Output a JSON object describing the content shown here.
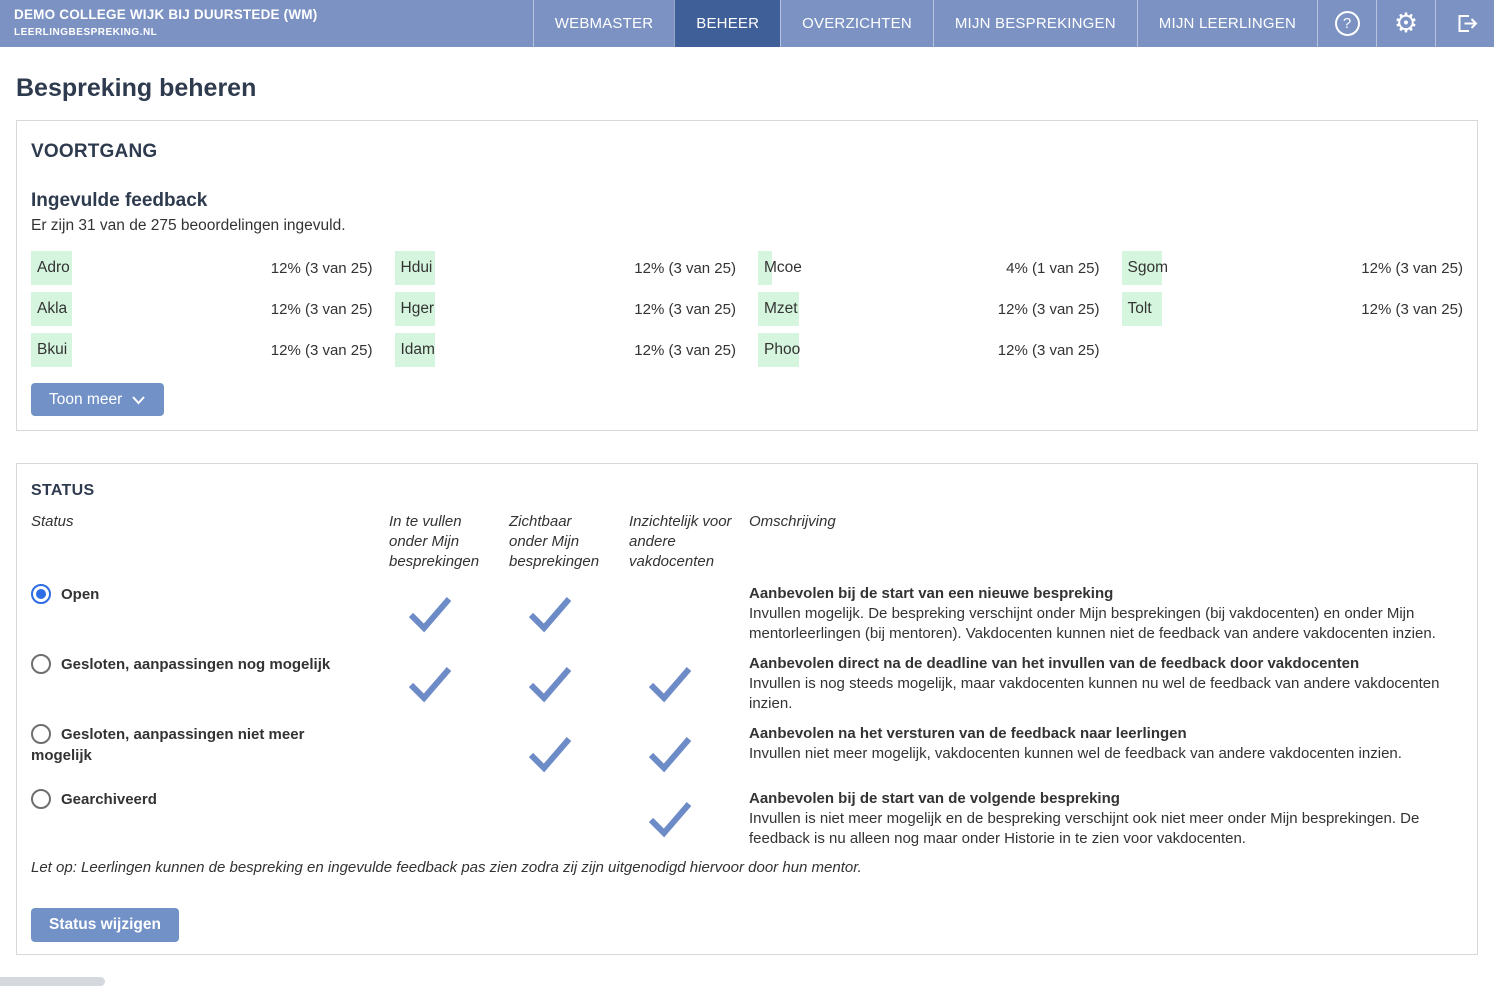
{
  "colors": {
    "header_bg": "#7b92c3",
    "header_active_bg": "#3f5f99",
    "accent_blue": "#7191c7",
    "check_blue": "#6d8cc7",
    "progress_green": "#d6f5de",
    "radio_blue": "#2e6de3"
  },
  "header": {
    "org_name": "DEMO COLLEGE WIJK BIJ DUURSTEDE (WM)",
    "brand": "LEERLINGBESPREKING.NL",
    "nav_items": [
      {
        "label": "WEBMASTER",
        "active": false
      },
      {
        "label": "BEHEER",
        "active": true
      },
      {
        "label": "OVERZICHTEN",
        "active": false
      },
      {
        "label": "MIJN BESPREKINGEN",
        "active": false
      },
      {
        "label": "MIJN LEERLINGEN",
        "active": false
      }
    ],
    "icon_buttons": [
      "help-icon",
      "settings-icon",
      "logout-icon"
    ]
  },
  "page_title": "Bespreking beheren",
  "voortgang": {
    "heading": "VOORTGANG",
    "subheading": "Ingevulde feedback",
    "summary": "Er zijn 31 van de 275 beoordelingen ingevuld.",
    "teachers": [
      {
        "code": "Adro",
        "pct": 12,
        "value": "12% (3 van 25)"
      },
      {
        "code": "Akla",
        "pct": 12,
        "value": "12% (3 van 25)"
      },
      {
        "code": "Bkui",
        "pct": 12,
        "value": "12% (3 van 25)"
      },
      {
        "code": "Hdui",
        "pct": 12,
        "value": "12% (3 van 25)"
      },
      {
        "code": "Hger",
        "pct": 12,
        "value": "12% (3 van 25)"
      },
      {
        "code": "Idam",
        "pct": 12,
        "value": "12% (3 van 25)"
      },
      {
        "code": "Mcoe",
        "pct": 4,
        "value": "4% (1 van 25)"
      },
      {
        "code": "Mzet",
        "pct": 12,
        "value": "12% (3 van 25)"
      },
      {
        "code": "Phoo",
        "pct": 12,
        "value": "12% (3 van 25)"
      },
      {
        "code": "Sgom",
        "pct": 12,
        "value": "12% (3 van 25)"
      },
      {
        "code": "Tolt",
        "pct": 12,
        "value": "12% (3 van 25)"
      }
    ],
    "show_more_label": "Toon meer"
  },
  "status": {
    "heading": "STATUS",
    "columns": [
      "Status",
      "In te vullen onder Mijn besprekingen",
      "Zichtbaar onder Mijn besprekingen",
      "Inzichtelijk voor andere vakdocenten",
      "Omschrijving"
    ],
    "rows": [
      {
        "label": "Open",
        "selected": true,
        "checks": [
          true,
          true,
          false
        ],
        "desc_title": "Aanbevolen bij de start van een nieuwe bespreking",
        "desc_body": "Invullen mogelijk. De bespreking verschijnt onder Mijn besprekingen (bij vakdocenten) en onder Mijn mentorleerlingen (bij mentoren). Vakdocenten kunnen niet de feedback van andere vakdocenten inzien."
      },
      {
        "label": "Gesloten, aanpassingen nog mogelijk",
        "selected": false,
        "checks": [
          true,
          true,
          true
        ],
        "desc_title": "Aanbevolen direct na de deadline van het invullen van de feedback door vakdocenten",
        "desc_body": "Invullen is nog steeds mogelijk, maar vakdocenten kunnen nu wel de feedback van andere vakdocenten inzien."
      },
      {
        "label": "Gesloten, aanpassingen niet meer mogelijk",
        "selected": false,
        "checks": [
          false,
          true,
          true
        ],
        "desc_title": "Aanbevolen na het versturen van de feedback naar leerlingen",
        "desc_body": "Invullen niet meer mogelijk, vakdocenten kunnen wel de feedback van andere vakdocenten inzien."
      },
      {
        "label": "Gearchiveerd",
        "selected": false,
        "checks": [
          false,
          false,
          true
        ],
        "desc_title": "Aanbevolen bij de start van de volgende bespreking",
        "desc_body": "Invullen is niet meer mogelijk en de bespreking verschijnt ook niet meer onder Mijn besprekingen. De feedback is nu alleen nog maar onder Historie in te zien voor vakdocenten."
      }
    ],
    "note": "Let op: Leerlingen kunnen de bespreking en ingevulde feedback pas zien zodra zij zijn uitgenodigd hiervoor door hun mentor.",
    "button_label": "Status wijzigen"
  }
}
